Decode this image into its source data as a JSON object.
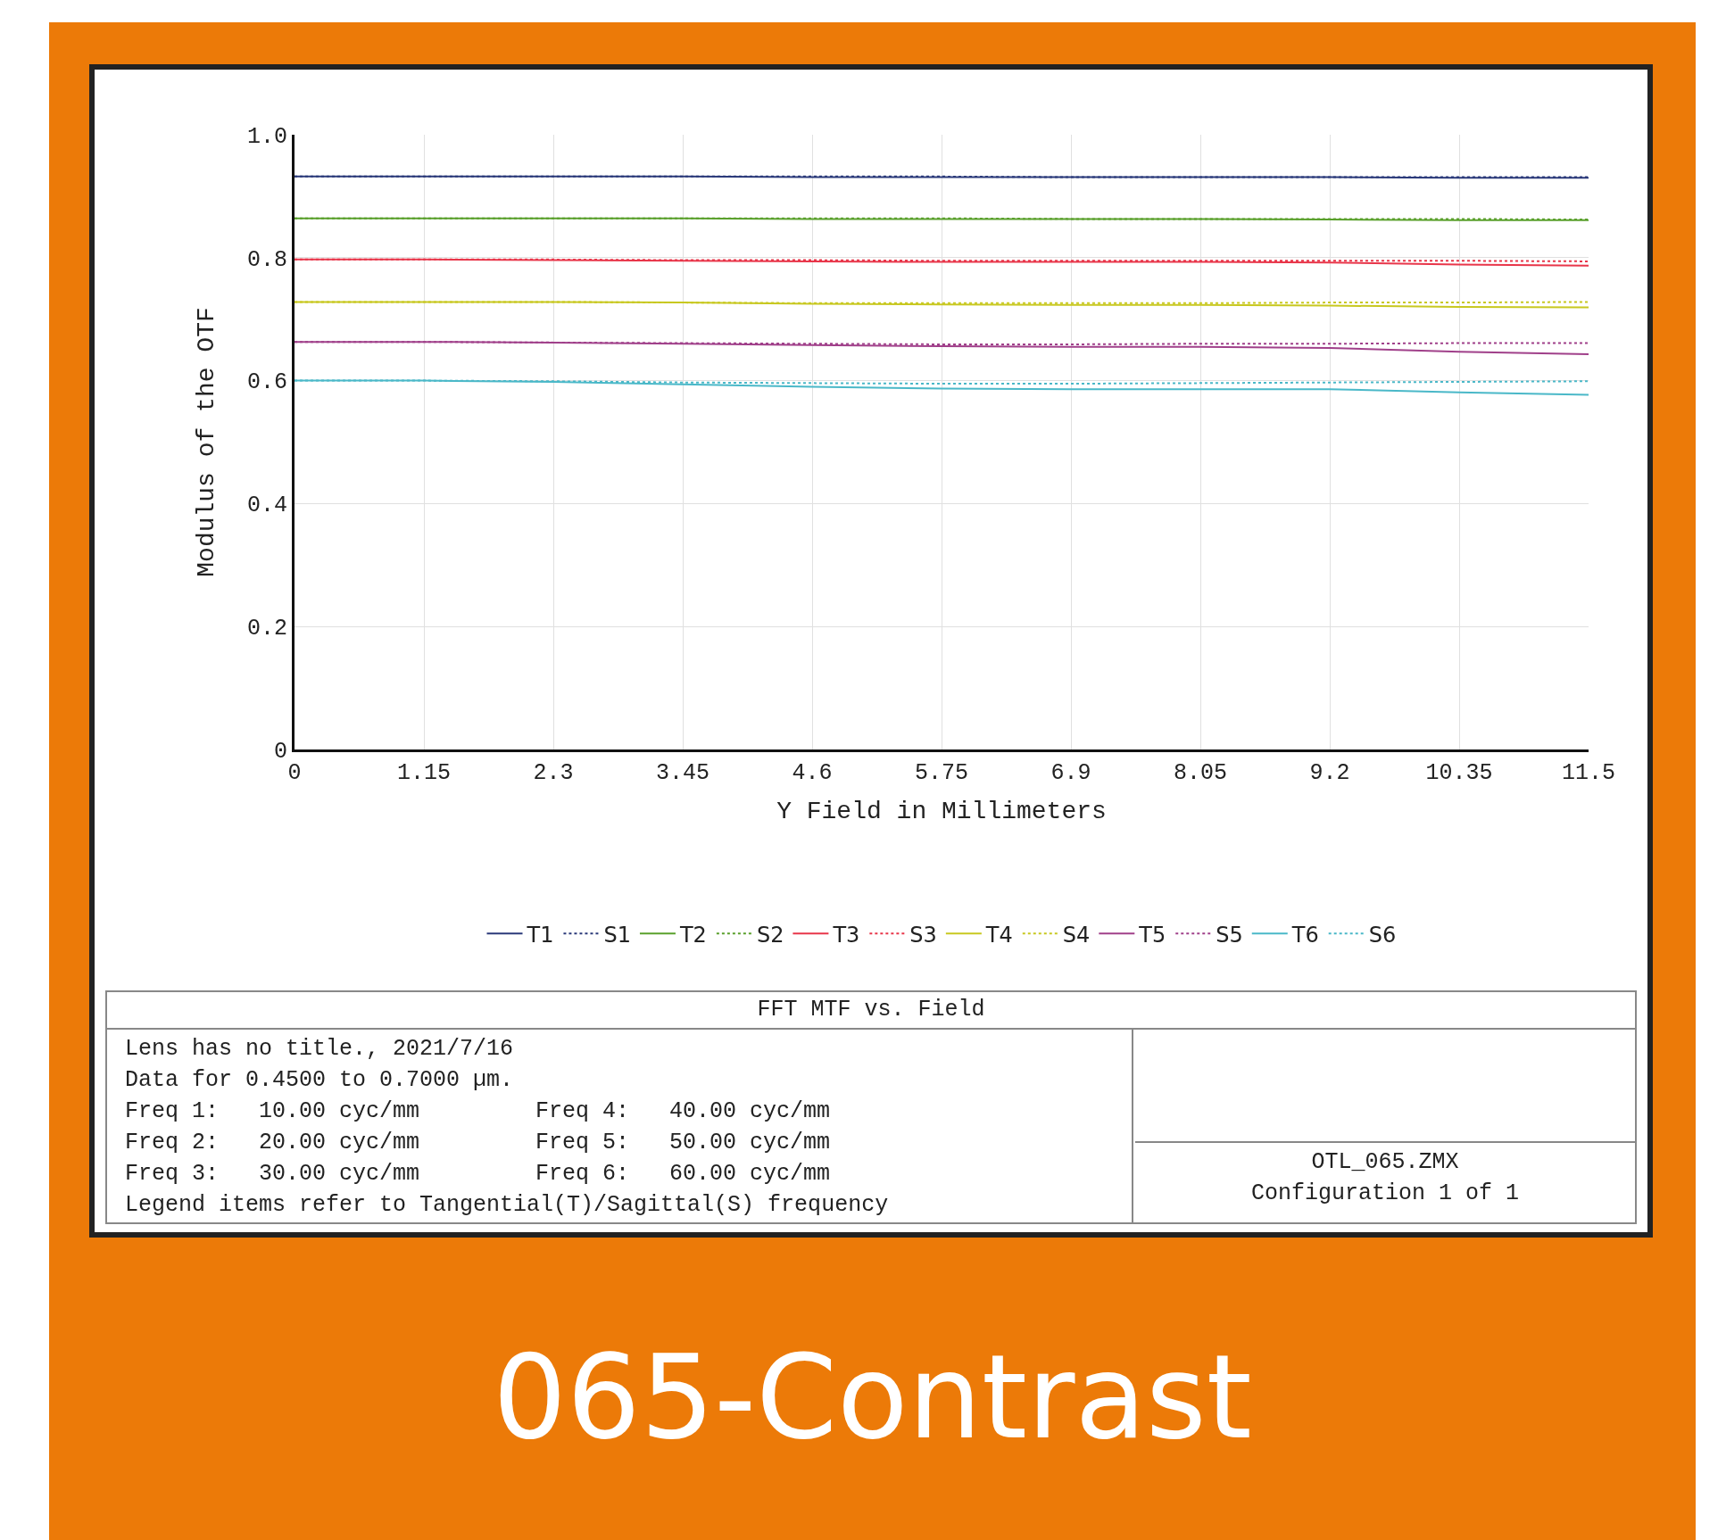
{
  "chart_data": {
    "type": "line",
    "title": "065-Contrast",
    "subtitle": "FFT MTF vs. Field",
    "xlabel": "Y Field in Millimeters",
    "ylabel": "Modulus of the OTF",
    "x": [
      0,
      1.15,
      2.3,
      3.45,
      4.6,
      5.75,
      6.9,
      8.05,
      9.2,
      10.35,
      11.5
    ],
    "xlim": [
      0,
      11.5
    ],
    "xticks": [
      0,
      1.15,
      2.3,
      3.45,
      4.6,
      5.75,
      6.9,
      8.05,
      9.2,
      10.35,
      11.5
    ],
    "ylim": [
      0,
      1
    ],
    "yticks": [
      0,
      0.2,
      0.4,
      0.6,
      0.8,
      {
        "value": 1,
        "label": "1.0"
      }
    ],
    "grid": true,
    "legend": "bottom",
    "marker": "none",
    "series": [
      {
        "name": "T1",
        "color": "#2b3a7a",
        "line_style": "solid",
        "values": [
          0.932,
          0.932,
          0.932,
          0.932,
          0.931,
          0.931,
          0.931,
          0.931,
          0.931,
          0.93,
          0.93
        ]
      },
      {
        "name": "S1",
        "color": "#2b3a7a",
        "line_style": "dotted",
        "values": [
          0.932,
          0.932,
          0.932,
          0.932,
          0.932,
          0.932,
          0.931,
          0.931,
          0.931,
          0.931,
          0.931
        ]
      },
      {
        "name": "T2",
        "color": "#5aa02c",
        "line_style": "solid",
        "values": [
          0.864,
          0.864,
          0.864,
          0.864,
          0.863,
          0.863,
          0.863,
          0.863,
          0.862,
          0.861,
          0.861
        ]
      },
      {
        "name": "S2",
        "color": "#5aa02c",
        "line_style": "dotted",
        "values": [
          0.864,
          0.864,
          0.864,
          0.864,
          0.864,
          0.864,
          0.863,
          0.863,
          0.863,
          0.863,
          0.862
        ]
      },
      {
        "name": "T3",
        "color": "#e8364a",
        "line_style": "solid",
        "values": [
          0.797,
          0.797,
          0.796,
          0.795,
          0.794,
          0.793,
          0.793,
          0.793,
          0.792,
          0.789,
          0.787
        ]
      },
      {
        "name": "S3",
        "color": "#e8364a",
        "line_style": "dotted",
        "values": [
          0.797,
          0.797,
          0.797,
          0.796,
          0.796,
          0.795,
          0.795,
          0.795,
          0.795,
          0.795,
          0.794
        ]
      },
      {
        "name": "T4",
        "color": "#c8c820",
        "line_style": "solid",
        "values": [
          0.728,
          0.728,
          0.728,
          0.727,
          0.725,
          0.724,
          0.723,
          0.723,
          0.722,
          0.72,
          0.719
        ]
      },
      {
        "name": "S4",
        "color": "#c8c820",
        "line_style": "dotted",
        "values": [
          0.728,
          0.728,
          0.728,
          0.727,
          0.726,
          0.726,
          0.726,
          0.726,
          0.727,
          0.727,
          0.728
        ]
      },
      {
        "name": "T5",
        "color": "#a0408a",
        "line_style": "solid",
        "values": [
          0.663,
          0.663,
          0.662,
          0.66,
          0.658,
          0.656,
          0.655,
          0.655,
          0.653,
          0.647,
          0.643
        ]
      },
      {
        "name": "S5",
        "color": "#a0408a",
        "line_style": "dotted",
        "values": [
          0.663,
          0.663,
          0.662,
          0.661,
          0.66,
          0.659,
          0.659,
          0.66,
          0.66,
          0.661,
          0.661
        ]
      },
      {
        "name": "T6",
        "color": "#4ab8c8",
        "line_style": "solid",
        "values": [
          0.6,
          0.6,
          0.598,
          0.594,
          0.59,
          0.587,
          0.586,
          0.586,
          0.586,
          0.581,
          0.577
        ]
      },
      {
        "name": "S6",
        "color": "#4ab8c8",
        "line_style": "dotted",
        "values": [
          0.6,
          0.6,
          0.599,
          0.597,
          0.596,
          0.595,
          0.595,
          0.596,
          0.597,
          0.598,
          0.599
        ]
      }
    ],
    "annotations": [
      "Lens has no title., 2021/7/16",
      "Data for 0.4500 to 0.7000 µm.",
      "Freq 1:   10.00 cyc/mm",
      "Freq 2:   20.00 cyc/mm",
      "Freq 3:   30.00 cyc/mm",
      "Freq 4:   40.00 cyc/mm",
      "Freq 5:   50.00 cyc/mm",
      "Freq 6:   60.00 cyc/mm",
      "Legend items refer to Tangential(T)/Sagittal(S) frequency",
      "OTL_065.ZMX",
      "Configuration 1 of 1"
    ]
  }
}
